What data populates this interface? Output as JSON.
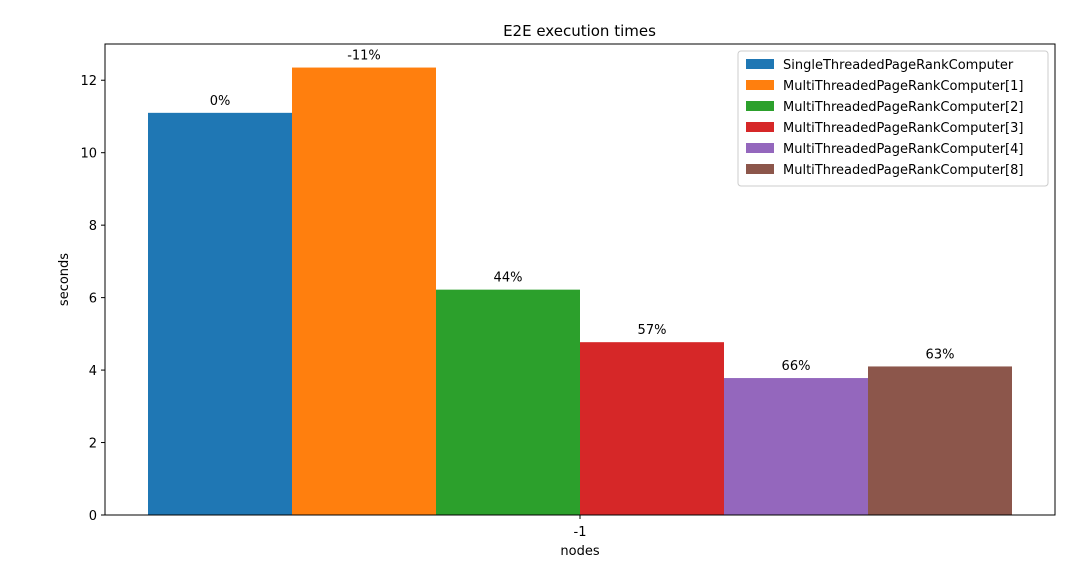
{
  "chart_data": {
    "type": "bar",
    "title": "E2E execution times",
    "xlabel": "nodes",
    "ylabel": "seconds",
    "categories": [
      "-1"
    ],
    "ylim": [
      0,
      13
    ],
    "yticks": [
      0,
      2,
      4,
      6,
      8,
      10,
      12
    ],
    "grid": false,
    "legend_position": "top-right",
    "series": [
      {
        "name": "SingleThreadedPageRankComputer",
        "values": [
          11.1
        ],
        "label": "0%",
        "color": "#1f77b4"
      },
      {
        "name": "MultiThreadedPageRankComputer[1]",
        "values": [
          12.35
        ],
        "label": "-11%",
        "color": "#ff7f0e"
      },
      {
        "name": "MultiThreadedPageRankComputer[2]",
        "values": [
          6.22
        ],
        "label": "44%",
        "color": "#2ca02c"
      },
      {
        "name": "MultiThreadedPageRankComputer[3]",
        "values": [
          4.77
        ],
        "label": "57%",
        "color": "#d62728"
      },
      {
        "name": "MultiThreadedPageRankComputer[4]",
        "values": [
          3.78
        ],
        "label": "66%",
        "color": "#9467bd"
      },
      {
        "name": "MultiThreadedPageRankComputer[8]",
        "values": [
          4.1
        ],
        "label": "63%",
        "color": "#8c564b"
      }
    ]
  }
}
